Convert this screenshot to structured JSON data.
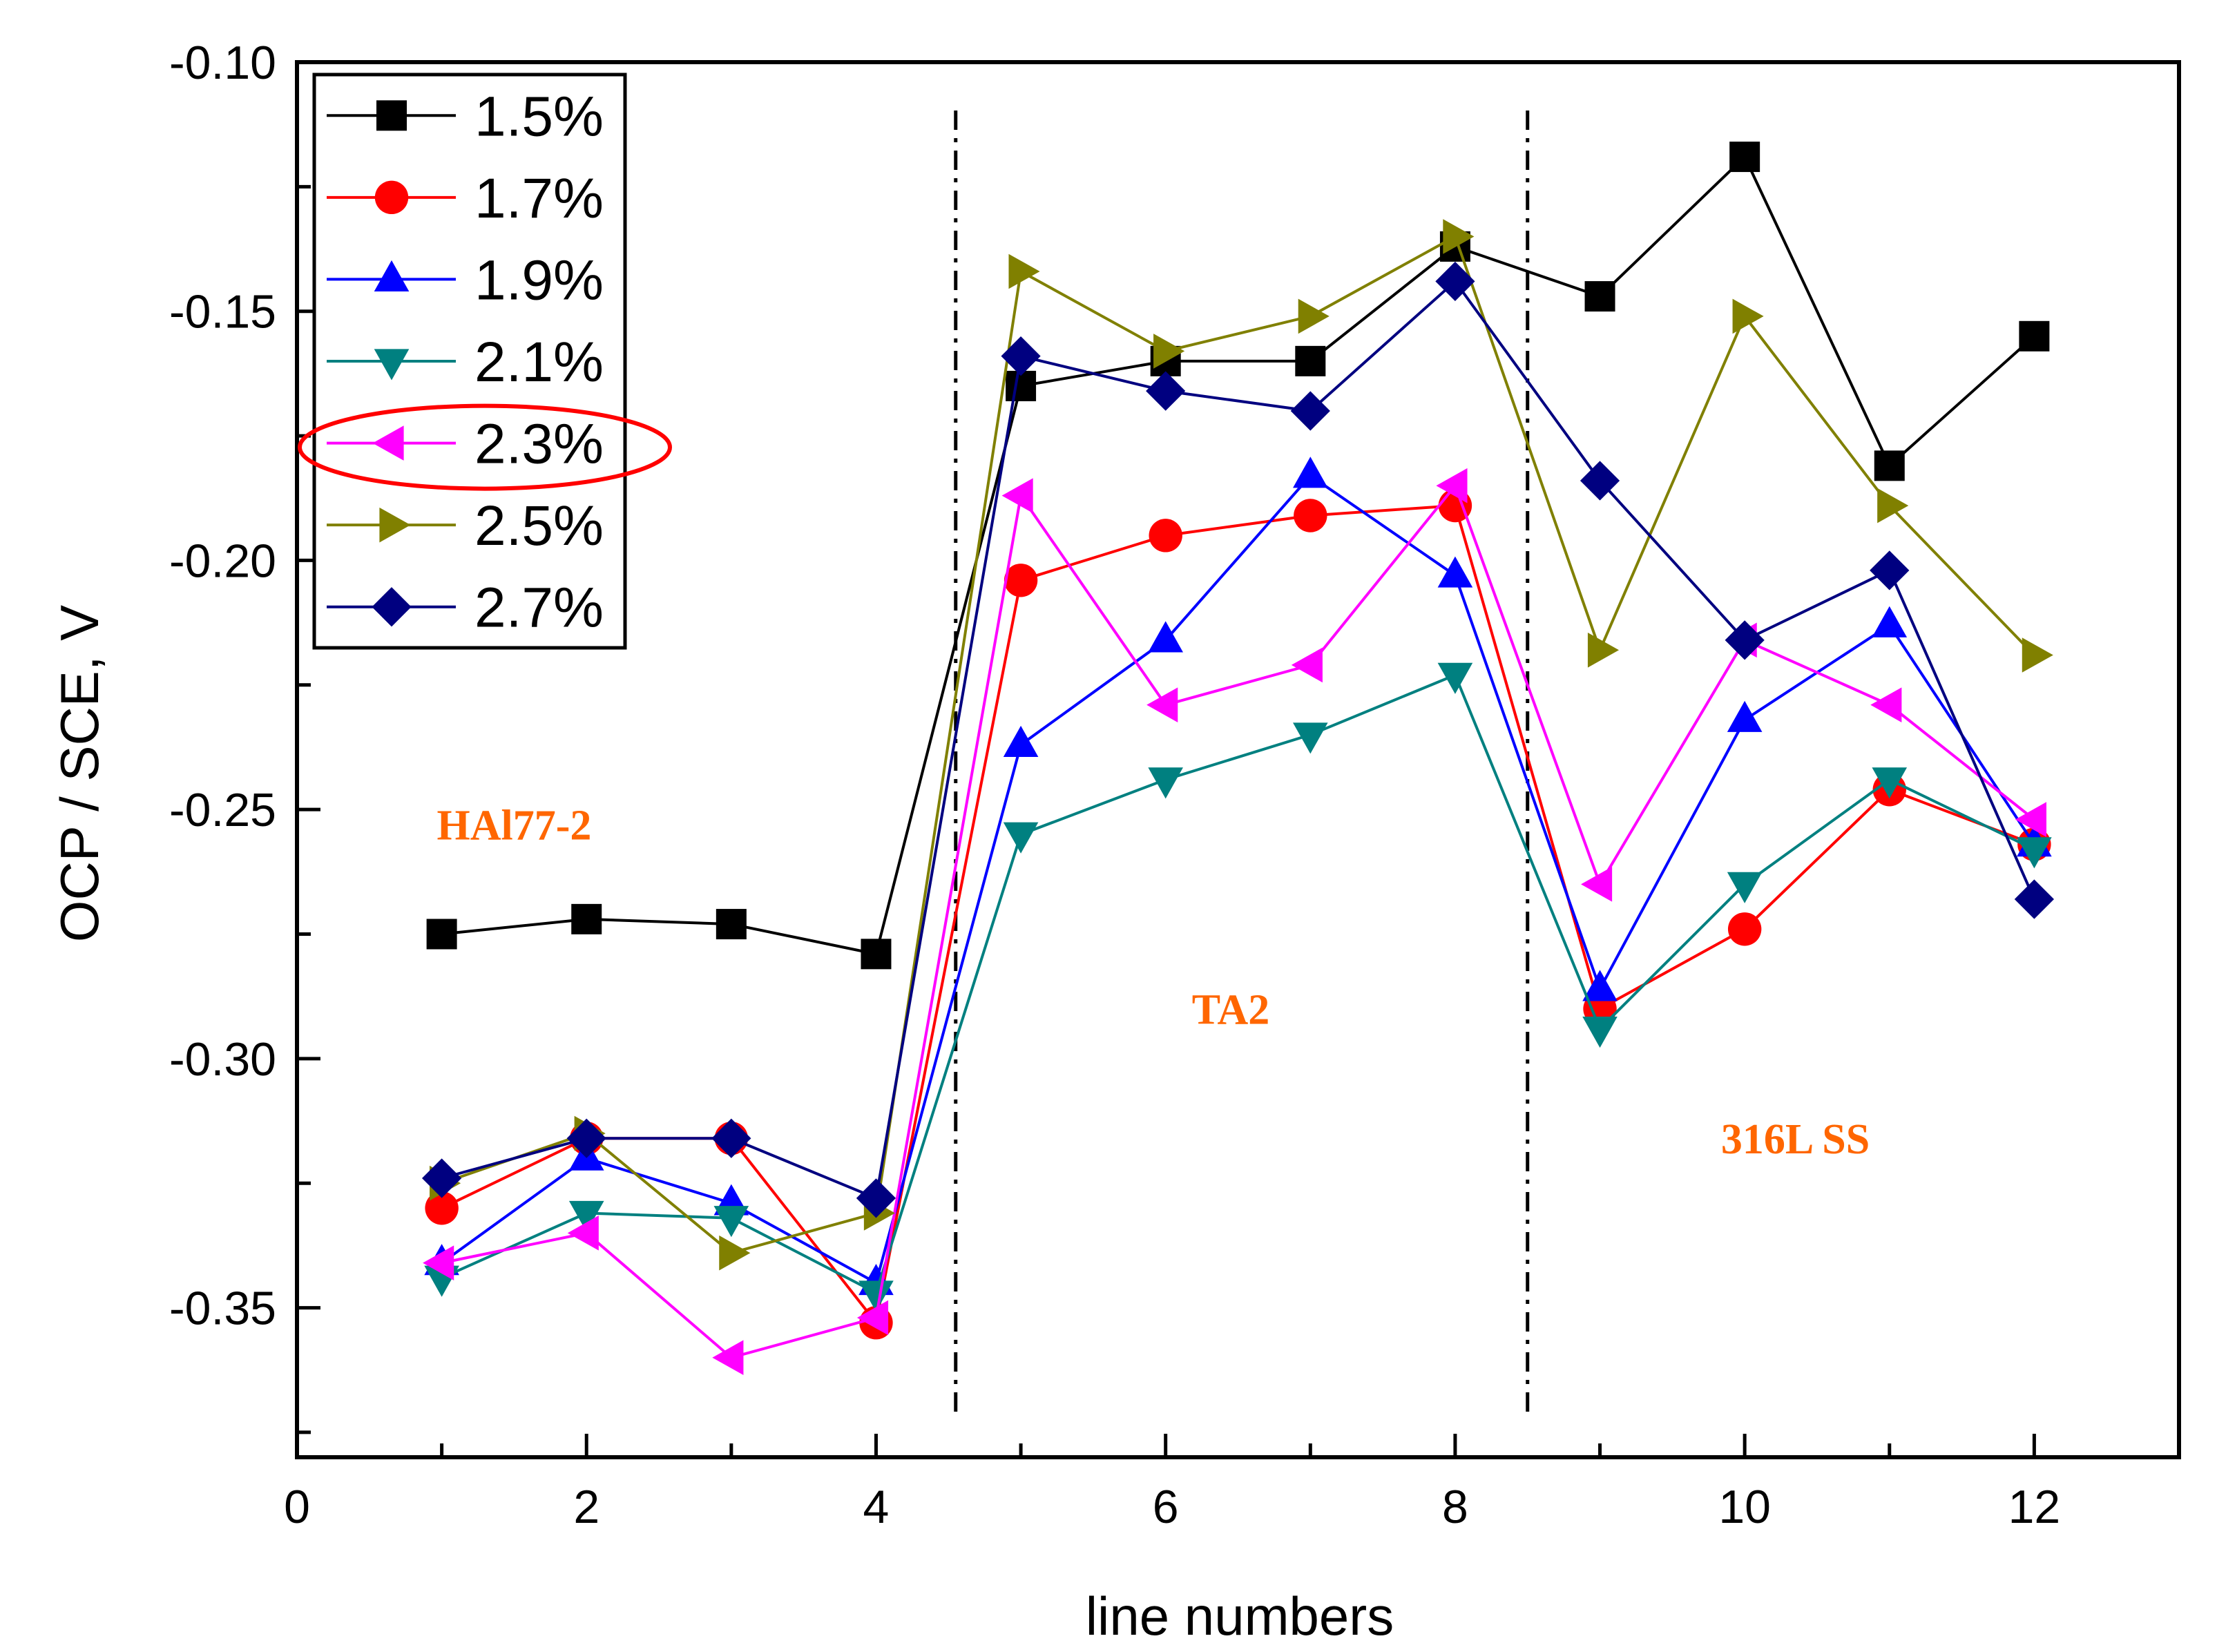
{
  "chart_data": {
    "type": "line",
    "title": "",
    "xlabel": "line numbers",
    "ylabel": "OCP / SCE, V",
    "xlim": [
      0,
      13
    ],
    "ylim": [
      -0.38,
      -0.1
    ],
    "x_ticks": [
      0,
      2,
      4,
      6,
      8,
      10,
      12
    ],
    "x_tick_labels": [
      "0",
      "2",
      "4",
      "6",
      "8",
      "10",
      "12"
    ],
    "y_ticks": [
      -0.35,
      -0.3,
      -0.25,
      -0.2,
      -0.15,
      -0.1
    ],
    "y_tick_labels": [
      "-0.35",
      "-0.30",
      "-0.25",
      "-0.20",
      "-0.15",
      "-0.10"
    ],
    "grid": false,
    "legend_position": "top-left",
    "x": [
      1,
      2,
      3,
      4,
      5,
      6,
      7,
      8,
      9,
      10,
      11,
      12
    ],
    "series": [
      {
        "name": "1.5%",
        "color": "#000000",
        "marker": "square",
        "values": [
          -0.275,
          -0.272,
          -0.273,
          -0.279,
          -0.165,
          -0.16,
          -0.16,
          -0.137,
          -0.147,
          -0.119,
          -0.181,
          -0.155
        ]
      },
      {
        "name": "1.7%",
        "color": "#FF0000",
        "marker": "circle",
        "values": [
          -0.33,
          -0.316,
          -0.316,
          -0.353,
          -0.204,
          -0.195,
          -0.191,
          -0.189,
          -0.29,
          -0.274,
          -0.246,
          -0.257
        ]
      },
      {
        "name": "1.9%",
        "color": "#0000FF",
        "marker": "triangle-up",
        "values": [
          -0.341,
          -0.32,
          -0.329,
          -0.345,
          -0.237,
          -0.216,
          -0.183,
          -0.203,
          -0.286,
          -0.232,
          -0.213,
          -0.257
        ]
      },
      {
        "name": "2.1%",
        "color": "#008080",
        "marker": "triangle-down",
        "values": [
          -0.344,
          -0.331,
          -0.332,
          -0.347,
          -0.255,
          -0.244,
          -0.235,
          -0.223,
          -0.294,
          -0.265,
          -0.244,
          -0.258
        ]
      },
      {
        "name": "2.3%",
        "color": "#FF00FF",
        "marker": "triangle-left",
        "values": [
          -0.341,
          -0.335,
          -0.36,
          -0.352,
          -0.187,
          -0.229,
          -0.221,
          -0.185,
          -0.265,
          -0.216,
          -0.229,
          -0.252
        ]
      },
      {
        "name": "2.5%",
        "color": "#808000",
        "marker": "triangle-right",
        "values": [
          -0.325,
          -0.315,
          -0.339,
          -0.331,
          -0.142,
          -0.158,
          -0.151,
          -0.135,
          -0.218,
          -0.151,
          -0.189,
          -0.219
        ]
      },
      {
        "name": "2.7%",
        "color": "#000080",
        "marker": "diamond",
        "values": [
          -0.324,
          -0.316,
          -0.316,
          -0.328,
          -0.159,
          -0.166,
          -0.17,
          -0.144,
          -0.184,
          -0.216,
          -0.202,
          -0.268
        ]
      }
    ],
    "dividers": [
      4.55,
      8.5
    ],
    "annotations": [
      {
        "text": "HAl77-2",
        "x": 1.5,
        "y": -0.256,
        "color": "#FF6600"
      },
      {
        "text": "TA2",
        "x": 6.45,
        "y": -0.293,
        "color": "#FF6600"
      },
      {
        "text": "316L SS",
        "x": 10.35,
        "y": -0.319,
        "color": "#FF6600"
      }
    ],
    "highlighted_legend_entry": "2.3%",
    "highlight_color": "#FF0000"
  }
}
